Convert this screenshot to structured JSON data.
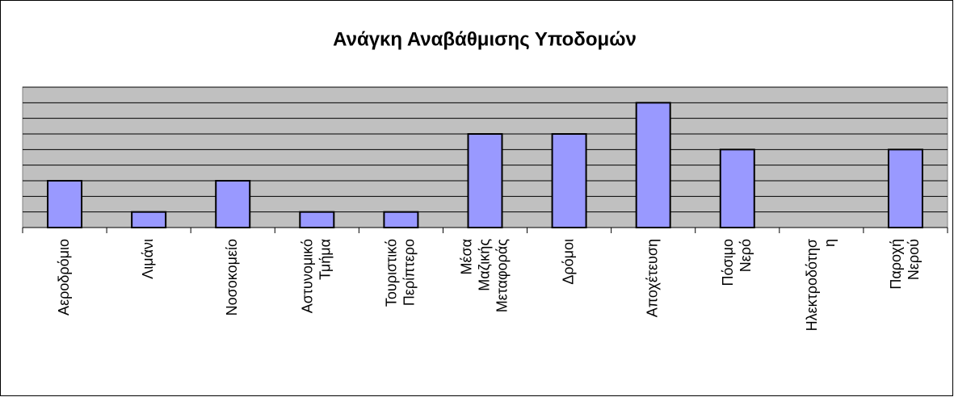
{
  "chart_data": {
    "type": "bar",
    "title": "Ανάγκη Αναβάθμισης Υποδομών",
    "categories": [
      "Αεροδρόμιο",
      "Λιμάνι",
      "Νοσοκομείο",
      "Αστυνομικό Τμήμα",
      "Τουριστικό Περίπτερο",
      "Μέσα Μαζικής Μεταφοράς",
      "Δρόμοι",
      "Αποχέτευση",
      "Πόσιμο Νερό",
      "Ηλεκτροδότηση",
      "Παροχή Νερού"
    ],
    "values": [
      3,
      1,
      3,
      1,
      1,
      6,
      6,
      8,
      5,
      0,
      5
    ],
    "color": "#9999ff",
    "ylim": [
      0,
      9
    ],
    "yticks": [
      0,
      1,
      2,
      3,
      4,
      5,
      6,
      7,
      8,
      9
    ],
    "grid": true
  }
}
